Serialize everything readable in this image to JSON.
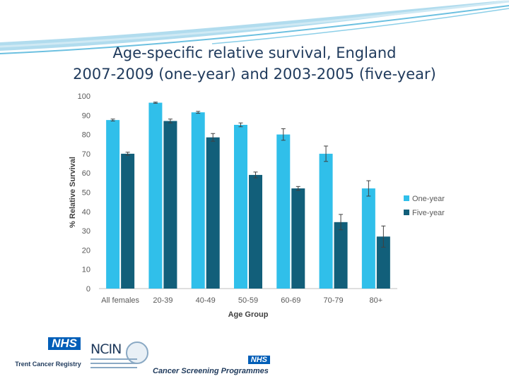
{
  "slide": {
    "title_line1": "Age-specific relative survival, England",
    "title_line2": "2007-2009 (one-year) and 2003-2005 (five-year)"
  },
  "colors": {
    "one_year": "#30bfea",
    "five_year": "#125f7a",
    "title": "#1f3a5c",
    "swoosh": "#a8d8ec"
  },
  "logos": {
    "nhs_text": "NHS",
    "trent_caption": "Trent Cancer Registry",
    "ncin_text": "NCIN",
    "csp_caption": "Cancer Screening Programmes"
  },
  "chart_data": {
    "type": "bar",
    "title": "",
    "xlabel": "Age Group",
    "ylabel": "% Relative Survival",
    "ylim": [
      0,
      100
    ],
    "yticks": [
      0,
      10,
      20,
      30,
      40,
      50,
      60,
      70,
      80,
      90,
      100
    ],
    "grid": false,
    "legend_position": "right",
    "error_bars": true,
    "categories": [
      "All females",
      "20-39",
      "40-49",
      "50-59",
      "60-69",
      "70-79",
      "80+"
    ],
    "series": [
      {
        "name": "One-year",
        "values": [
          87.5,
          96.5,
          91.5,
          85,
          80,
          70,
          52
        ],
        "err_low": [
          0.5,
          0.3,
          0.5,
          1,
          3,
          4,
          4
        ],
        "err_high": [
          0.5,
          0.3,
          0.5,
          1,
          3,
          4,
          4
        ],
        "color": "#30bfea"
      },
      {
        "name": "Five-year",
        "values": [
          70,
          87,
          78.5,
          59,
          52,
          34.5,
          27
        ],
        "err_low": [
          0.8,
          1,
          2,
          1.5,
          1,
          4,
          5.5
        ],
        "err_high": [
          0.8,
          1,
          2,
          1.5,
          1,
          4,
          5.5
        ],
        "color": "#125f7a"
      }
    ]
  }
}
